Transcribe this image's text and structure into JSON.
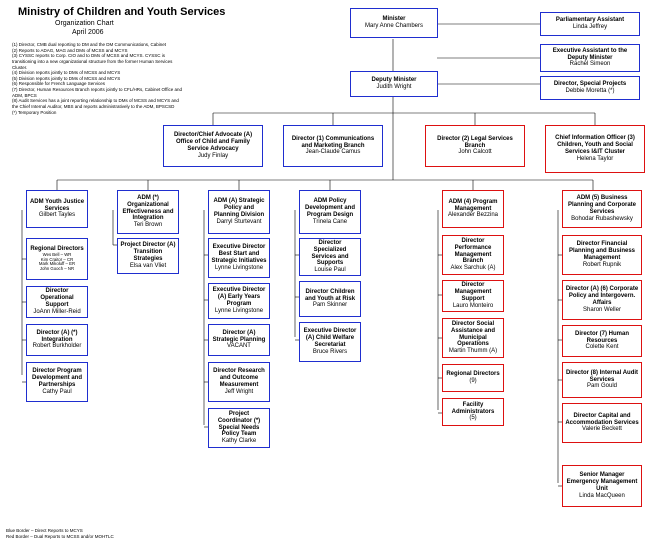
{
  "header": {
    "title": "Ministry of Children and Youth Services",
    "subtitle": "Organization Chart",
    "date": "April 2006"
  },
  "footnotes": [
    "(1) Director, CMB dual reporting to DM and the DM Communications, Cabinet",
    "(2) Reports to ADAG, MAG and DMs of MCSS and MCYS",
    "(3) CYSSC reports to Corp. CIO and to DMs of MCSS and MCYS. CYSSC is transitioning into a new organizational structure from the former Human Services Cluster.",
    "(4) Division reports jointly to DMs of MCSS and MCYS",
    "(5) Division reports jointly to DMs of MCSS and MCYS",
    "(6) Responsible for French Language Services",
    "(7) Director, Human Resources Branch reports jointly to CFL/HRs, Cabinet Office and ADM, BPCS",
    "(8) Audit Services has a joint reporting relationship to DMs of MCSS and MCYS and the Chief Internal Auditor, MBS and reports administratively to the ADM, BPSCSD",
    "(*) Temporary Position"
  ],
  "legend": {
    "blue": "Blue Border – Direct Reports to MCYS",
    "red": "Red Border – Dual Reports to MCSS and/or MOHTLC"
  },
  "colors": {
    "blue": "#1f2ecf",
    "red": "#d11"
  },
  "nodes": {
    "minister": {
      "title": "Minister",
      "name": "Mary Anne Chambers"
    },
    "parl": {
      "title": "Parliamentary Assistant",
      "name": "Linda Jeffrey"
    },
    "deputy": {
      "title": "Deputy Minister",
      "name": "Judith Wright"
    },
    "execasst": {
      "title": "Executive Assistant to the Deputy Minister",
      "name": "Rachel Simeon"
    },
    "dirspec": {
      "title": "Director, Special Projects",
      "name": "Debbie Moretta (*)"
    },
    "advocate": {
      "title": "Director/Chief Advocate (A) Office of Child and Family Service Advocacy",
      "name": "Judy Finlay"
    },
    "comm": {
      "title": "Director (1) Communications and Marketing Branch",
      "name": "Jean-Claude Camus"
    },
    "legal": {
      "title": "Director (2) Legal Services Branch",
      "name": "John Calcott"
    },
    "cio": {
      "title": "Chief Information Officer (3) Children, Youth and Social Services I&IT Cluster",
      "name": "Helena Taylor"
    },
    "adm1": {
      "title": "ADM Youth Justice Services",
      "name": "Gilbert Tayles"
    },
    "adm2": {
      "title": "ADM (*) Organizational Effectiveness and Integration",
      "name": "Teri Brown"
    },
    "adm3": {
      "title": "ADM (A) Strategic Policy and Planning Division",
      "name": "Darryl Sturtevant"
    },
    "adm4": {
      "title": "ADM Policy Development and Program Design",
      "name": "Trinela Cane"
    },
    "adm5": {
      "title": "ADM (4) Program Management",
      "name": "Alexander Bezzina"
    },
    "adm6": {
      "title": "ADM (5) Business Planning and Corporate Services",
      "name": "Bohodar Rubashewsky"
    },
    "c1a": {
      "title": "Regional Directors",
      "name": "Wes Bell – WR\nKim Craitor – CR\nMark Mikoluff – ER\nJohn Gooch – NR"
    },
    "c1b": {
      "title": "Director Operational Support",
      "name": "JoAnn Miller-Reid"
    },
    "c1c": {
      "title": "Director (A) (*) Integration",
      "name": "Robert Burkholder"
    },
    "c1d": {
      "title": "Director Program Development and Partnerships",
      "name": "Cathy Paul"
    },
    "c2a": {
      "title": "Project Director (A) Transition Strategies",
      "name": "Elsa van Vliet"
    },
    "c3a": {
      "title": "Executive Director Best Start and Strategic Initiatives",
      "name": "Lynne Livingstone"
    },
    "c3b": {
      "title": "Executive Director (A) Early Years Program",
      "name": "Lynne Livingstone"
    },
    "c3c": {
      "title": "Director (A) Strategic Planning",
      "name": "VACANT"
    },
    "c3d": {
      "title": "Director Research and Outcome Measurement",
      "name": "Jeff Wright"
    },
    "c3e": {
      "title": "Project Coordinator (*) Special Needs Policy Team",
      "name": "Kathy Clarke"
    },
    "c4a": {
      "title": "Director Specialized Services and Supports",
      "name": "Louise Paul"
    },
    "c4b": {
      "title": "Director Children and Youth at Risk",
      "name": "Pam Skinner"
    },
    "c4c": {
      "title": "Executive Director (A) Child Welfare Secretariat",
      "name": "Bruce Rivers"
    },
    "c5a": {
      "title": "Director Performance Management Branch",
      "name": "Alex Sarchuk (A)"
    },
    "c5b": {
      "title": "Director Management Support",
      "name": "Lauro Monteiro"
    },
    "c5c": {
      "title": "Director Social Assistance and Municipal Operations",
      "name": "Martin Thumm (A)"
    },
    "c5d": {
      "title": "Regional Directors",
      "name": "(9)"
    },
    "c5e": {
      "title": "Facility Administrators",
      "name": "(5)"
    },
    "c6a": {
      "title": "Director Financial Planning and Business Management",
      "name": "Robert Rupnik"
    },
    "c6b": {
      "title": "Director (A) (6) Corporate Policy and Intergovern. Affairs",
      "name": "Sharon Weller"
    },
    "c6c": {
      "title": "Director (7) Human Resources",
      "name": "Colette Kent"
    },
    "c6d": {
      "title": "Director (8) Internal Audit Services",
      "name": "Pam Gould"
    },
    "c6e": {
      "title": "Director Capital and Accommodation Services",
      "name": "Valerie Beckett"
    },
    "c6f": {
      "title": "Senior Manager Emergency Management Unit",
      "name": "Linda MacQueen"
    }
  }
}
